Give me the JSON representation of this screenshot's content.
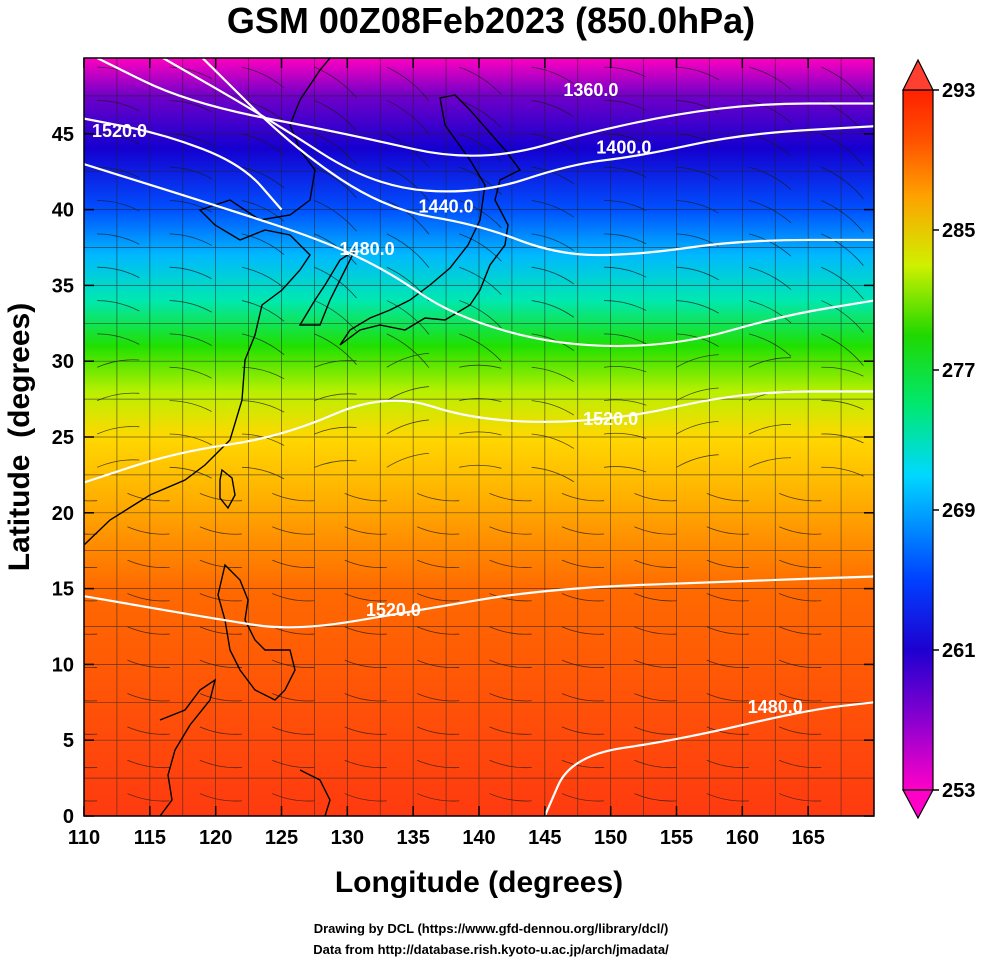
{
  "title": "GSM 00Z08Feb2023 (850.0hPa)",
  "xlabel": "Longitude (degrees)",
  "ylabel": "Latitude  (degrees)",
  "credits": {
    "line1": "Drawing by DCL (https://www.gfd-dennou.org/library/dcl/)",
    "line2": "Data from http://database.rish.kyoto-u.ac.jp/arch/jmadata/"
  },
  "map": {
    "xlim": [
      110,
      170
    ],
    "ylim": [
      0,
      50
    ],
    "xticks": [
      110,
      115,
      120,
      125,
      130,
      135,
      140,
      145,
      150,
      155,
      160,
      165
    ],
    "yticks": [
      0,
      5,
      10,
      15,
      20,
      25,
      30,
      35,
      40,
      45
    ],
    "field": "temperature (K) shaded, geopotential height contours, streamlines",
    "contours": [
      {
        "label": "1360.0",
        "lon": 148.5,
        "lat": 47.5,
        "path": [
          [
            111,
            50
          ],
          [
            118,
            47
          ],
          [
            130,
            45
          ],
          [
            140,
            43
          ],
          [
            150,
            45.5
          ],
          [
            160,
            47
          ],
          [
            170,
            47
          ]
        ]
      },
      {
        "label": "1400.0",
        "lon": 151,
        "lat": 43.7,
        "path": [
          [
            116,
            50
          ],
          [
            124,
            46
          ],
          [
            132,
            41.5
          ],
          [
            140,
            41
          ],
          [
            147,
            43
          ],
          [
            152,
            43.5
          ],
          [
            160,
            45
          ],
          [
            170,
            45.5
          ]
        ]
      },
      {
        "label": "1440.0",
        "lon": 137.5,
        "lat": 39.8,
        "path": [
          [
            119,
            50
          ],
          [
            126,
            44
          ],
          [
            133,
            40
          ],
          [
            140,
            39
          ],
          [
            146,
            37
          ],
          [
            152,
            37
          ],
          [
            160,
            38
          ],
          [
            170,
            38
          ]
        ]
      },
      {
        "label": "1480.0",
        "lon": 131.5,
        "lat": 37.0,
        "path": [
          [
            110,
            43
          ],
          [
            121,
            40
          ],
          [
            128,
            38
          ],
          [
            133,
            36
          ],
          [
            138,
            33
          ],
          [
            146,
            31
          ],
          [
            155,
            31
          ],
          [
            163,
            33
          ],
          [
            170,
            34
          ]
        ]
      },
      {
        "label": "1520.0",
        "lon": 112.7,
        "lat": 44.8,
        "path": [
          [
            110,
            46
          ],
          [
            116,
            45
          ],
          [
            122,
            43
          ],
          [
            125,
            40
          ]
        ]
      },
      {
        "label": "1520.0",
        "lon": 150,
        "lat": 25.8,
        "path": [
          [
            110,
            22
          ],
          [
            117,
            24
          ],
          [
            125,
            25
          ],
          [
            133,
            28
          ],
          [
            140,
            26
          ],
          [
            150,
            26
          ],
          [
            160,
            28
          ],
          [
            170,
            28
          ]
        ]
      },
      {
        "label": "1520.0",
        "lon": 133.5,
        "lat": 13.2,
        "path": [
          [
            110,
            14.5
          ],
          [
            120,
            13
          ],
          [
            126,
            12.2
          ],
          [
            135,
            13.5
          ],
          [
            145,
            15
          ],
          [
            160,
            15.5
          ],
          [
            170,
            15.8
          ]
        ]
      },
      {
        "label": "1480.0",
        "lon": 162.5,
        "lat": 6.8,
        "path": [
          [
            145,
            0
          ],
          [
            147,
            4
          ],
          [
            155,
            5
          ],
          [
            165,
            7
          ],
          [
            170,
            7.5
          ]
        ]
      }
    ]
  },
  "colorbar": {
    "min": 253,
    "max": 293,
    "ticks": [
      "293",
      "285",
      "277",
      "269",
      "261",
      "253"
    ],
    "colors": [
      "#ff00c8",
      "#8a00d0",
      "#1e00d0",
      "#0050ff",
      "#00d8ff",
      "#00e060",
      "#c8f000",
      "#ffb000",
      "#ff6000",
      "#ff2a00"
    ]
  }
}
